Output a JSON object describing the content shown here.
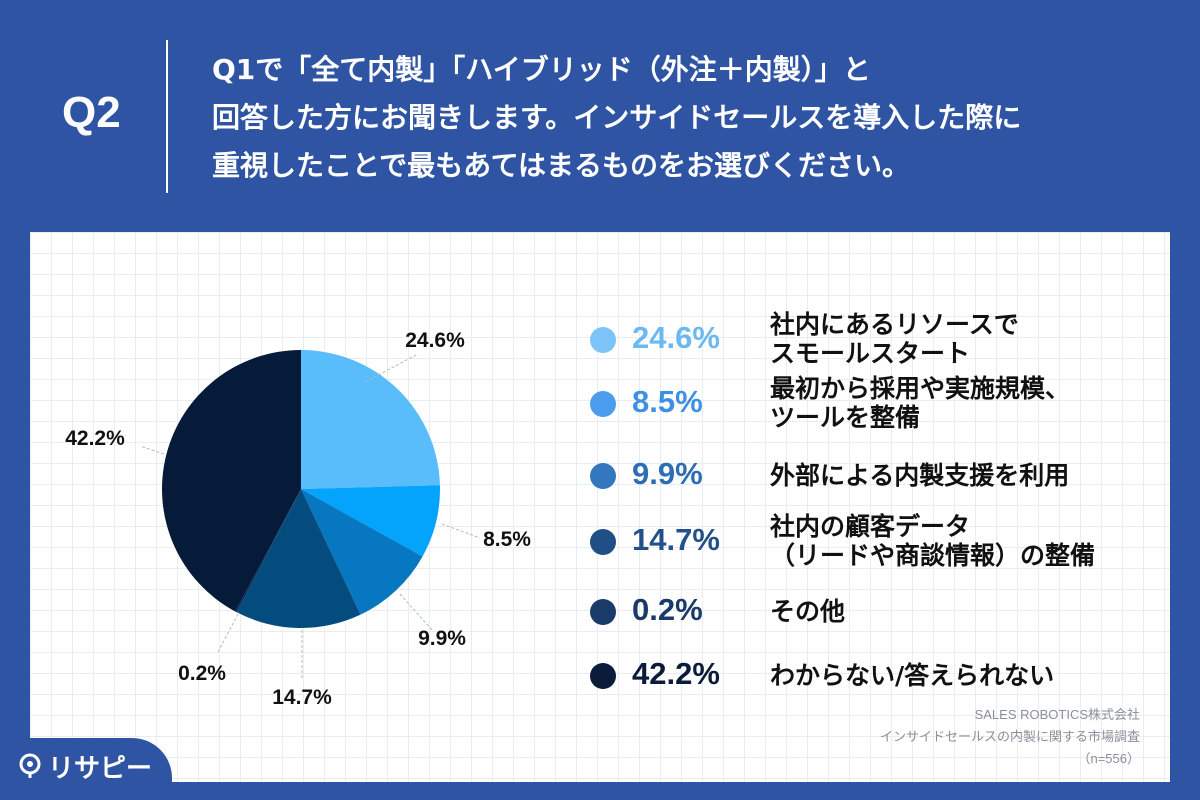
{
  "header": {
    "q_label": "Q2",
    "question_lines": [
      "Q1で「全て内製」「ハイブリッド（外注＋内製）」と",
      "回答した方にお聞きします。インサイドセールスを導入した際に",
      "重視したことで最もあてはまるものをお選びください。"
    ]
  },
  "chart_data": {
    "type": "pie",
    "unit": "%",
    "slices": [
      {
        "label": "社内にあるリソースで\nスモールスタート",
        "value": 24.6,
        "display": "24.6%",
        "color": "#59bcfb"
      },
      {
        "label": "最初から採用や実施規模、\nツールを整備",
        "value": 8.5,
        "display": "8.5%",
        "color": "#04a3fc"
      },
      {
        "label": "外部による内製支援を利用",
        "value": 9.9,
        "display": "9.9%",
        "color": "#0677c0"
      },
      {
        "label": "社内の顧客データ\n（リードや商談情報）の整備",
        "value": 14.7,
        "display": "14.7%",
        "color": "#054c7e"
      },
      {
        "label": "その他",
        "value": 0.2,
        "display": "0.2%",
        "color": "#062f5a"
      },
      {
        "label": "わからない/答えられない",
        "value": 42.2,
        "display": "42.2%",
        "color": "#061a3a"
      }
    ]
  },
  "legend": [
    {
      "pct": "24.6%",
      "dot_color": "#7cc4f8",
      "text_color": "#6ab9f2",
      "lines": [
        "社内にあるリソースで",
        "スモールスタート"
      ]
    },
    {
      "pct": "8.5%",
      "dot_color": "#4a9cef",
      "text_color": "#3e90e3",
      "lines": [
        "最初から採用や実施規模、",
        "ツールを整備"
      ]
    },
    {
      "pct": "9.9%",
      "dot_color": "#3377bf",
      "text_color": "#2d6db3",
      "lines": [
        "外部による内製支援を利用"
      ]
    },
    {
      "pct": "14.7%",
      "dot_color": "#1f4f86",
      "text_color": "#22508a",
      "lines": [
        "社内の顧客データ",
        "（リードや商談情報）の整備"
      ]
    },
    {
      "pct": "0.2%",
      "dot_color": "#1a3a68",
      "text_color": "#1a3a68",
      "lines": [
        "その他"
      ]
    },
    {
      "pct": "42.2%",
      "dot_color": "#0b1b3a",
      "text_color": "#0b1b3a",
      "lines": [
        "わからない/答えられない"
      ]
    }
  ],
  "source": {
    "lines": [
      "SALES ROBOTICS株式会社",
      "インサイドセールスの内製に関する市場調査",
      "（n=556）"
    ]
  },
  "logo": {
    "text": "リサピー",
    "icon": "map-pin-icon"
  }
}
